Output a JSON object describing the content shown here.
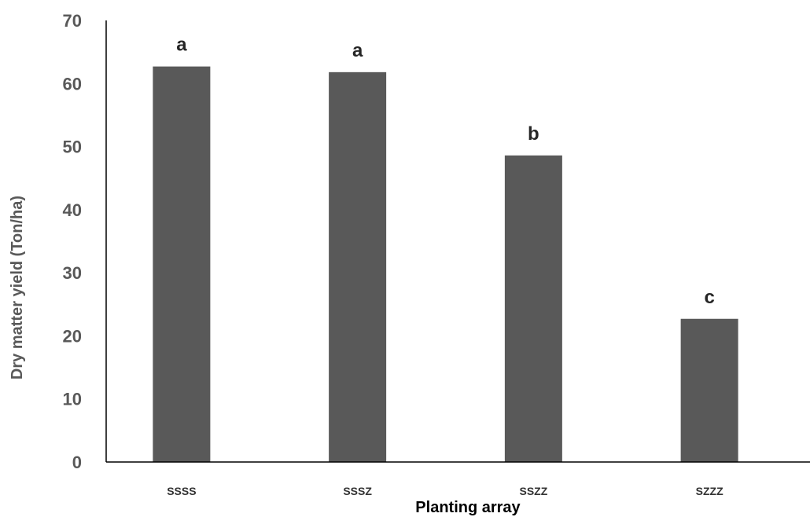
{
  "chart_data": {
    "type": "bar",
    "categories": [
      "SSSS",
      "SSSZ",
      "SSZZ",
      "SZZZ"
    ],
    "values": [
      62.7,
      61.8,
      48.6,
      22.7
    ],
    "data_labels": [
      "a",
      "a",
      "b",
      "c"
    ],
    "xlabel": "Planting array",
    "ylabel": "Dry matter yield (Ton/ha)",
    "ylim": [
      0,
      70
    ],
    "yticks": [
      0,
      10,
      20,
      30,
      40,
      50,
      60,
      70
    ],
    "bar_color": "#595959",
    "grid": false,
    "legend": "none"
  }
}
